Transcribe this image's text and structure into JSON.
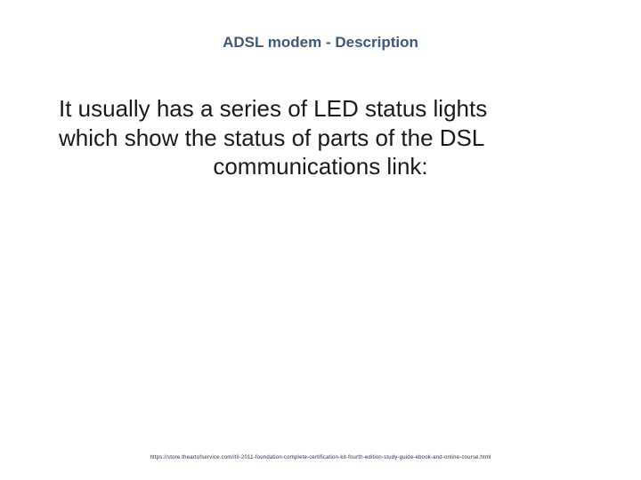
{
  "slide": {
    "title": "ADSL modem - Description",
    "body_line1": "It usually has a series of LED status lights",
    "body_line2": "which show the status of parts of the DSL",
    "body_line3": "communications link:",
    "footer_url": "https://store.theartofservice.com/itil-2011-foundation-complete-certification-kit-fourth-edition-study-guide-ebook-and-online-course.html",
    "colors": {
      "title_color": "#3c5a78",
      "body_color": "#1a1a1a",
      "footer_color": "#2a2a4a",
      "background": "#ffffff"
    },
    "typography": {
      "title_fontsize": 17,
      "body_fontsize": 26,
      "footer_fontsize": 6,
      "title_weight": "bold",
      "body_weight": "normal"
    }
  }
}
